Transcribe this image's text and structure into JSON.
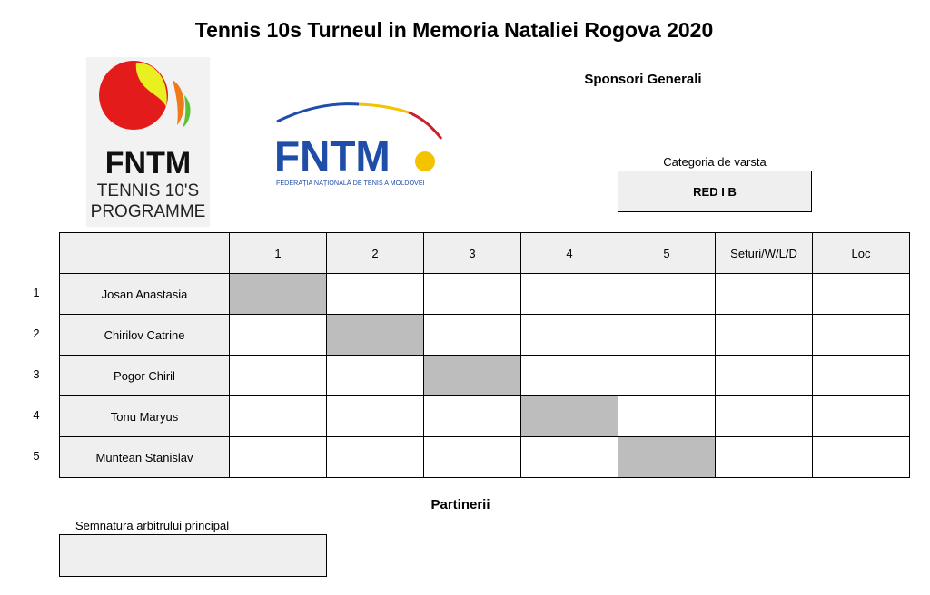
{
  "title": "Tennis 10s Turneul in Memoria Nataliei Rogova 2020",
  "sponsors_heading": "Sponsori Generali",
  "logos": {
    "logo1": {
      "main": "FNTM",
      "line1": "TENNIS 10'S",
      "line2": "PROGRAMME"
    },
    "logo2": {
      "main": "FNTM",
      "sub": "FEDERAȚIA NAȚIONALĂ DE TENIS A MOLDOVEI"
    }
  },
  "category": {
    "label": "Categoria de varsta",
    "value": "RED I B"
  },
  "table": {
    "headers": [
      "",
      "1",
      "2",
      "3",
      "4",
      "5",
      "Seturi/W/L/D",
      "Loc"
    ],
    "rows": [
      {
        "num": "1",
        "name": "Josan Anastasia"
      },
      {
        "num": "2",
        "name": "Chirilov Catrine"
      },
      {
        "num": "3",
        "name": "Pogor Chiril"
      },
      {
        "num": "4",
        "name": "Tonu Maryus"
      },
      {
        "num": "5",
        "name": "Muntean Stanislav"
      }
    ]
  },
  "partners_heading": "Partinerii",
  "signature": {
    "label": "Semnatura arbitrului principal"
  }
}
